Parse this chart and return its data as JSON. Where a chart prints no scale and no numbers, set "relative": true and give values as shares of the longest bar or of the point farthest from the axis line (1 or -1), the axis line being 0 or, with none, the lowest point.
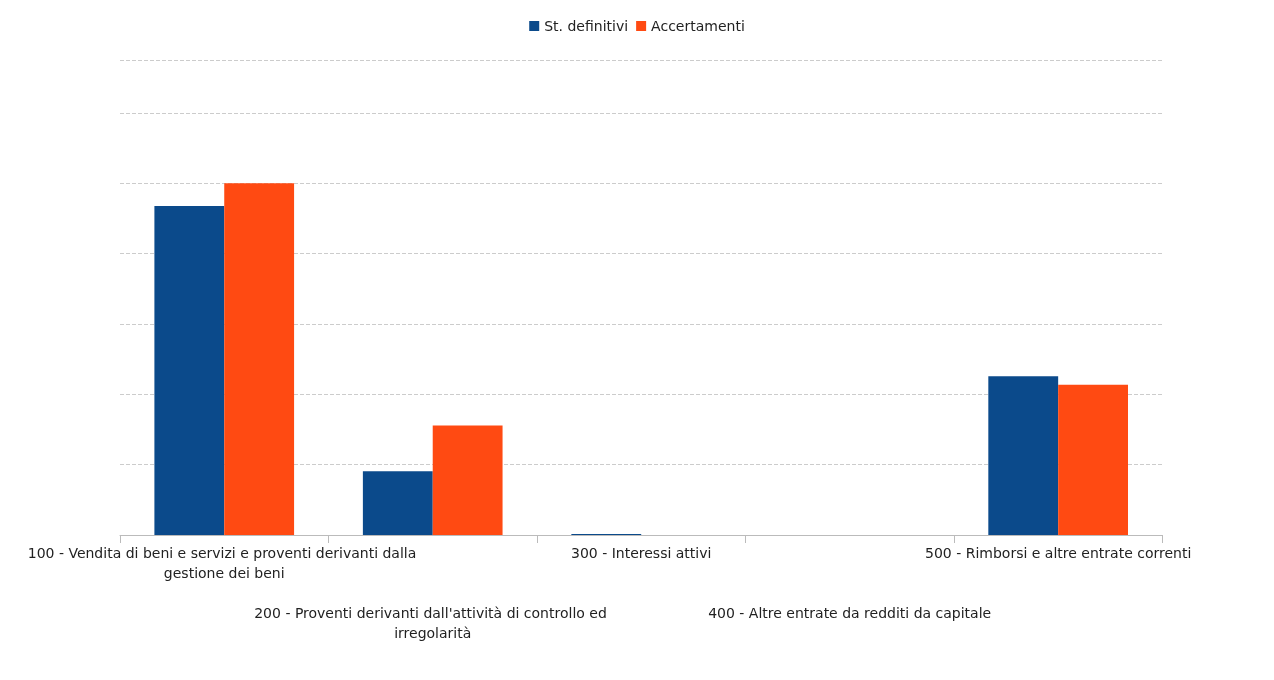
{
  "chart_data": {
    "type": "bar",
    "relative": true,
    "categories": [
      "100 - Vendita di beni e servizi e proventi derivanti dalla gestione dei beni",
      "200 - Proventi derivanti dall'attività di controllo ed irregolarità",
      "300 - Interessi attivi",
      "400 - Altre entrate da redditi da capitale",
      "500 - Rimborsi e altre entrate correnti"
    ],
    "series": [
      {
        "name": "St. definitivi",
        "color": "#0b4a8b",
        "values": [
          0.935,
          0.181,
          0.003,
          0,
          0.451
        ]
      },
      {
        "name": "Accertamenti",
        "color": "#ff4a12",
        "values": [
          1,
          0.311,
          0,
          0,
          0.427
        ]
      }
    ],
    "grid": "y",
    "legend": "top"
  }
}
